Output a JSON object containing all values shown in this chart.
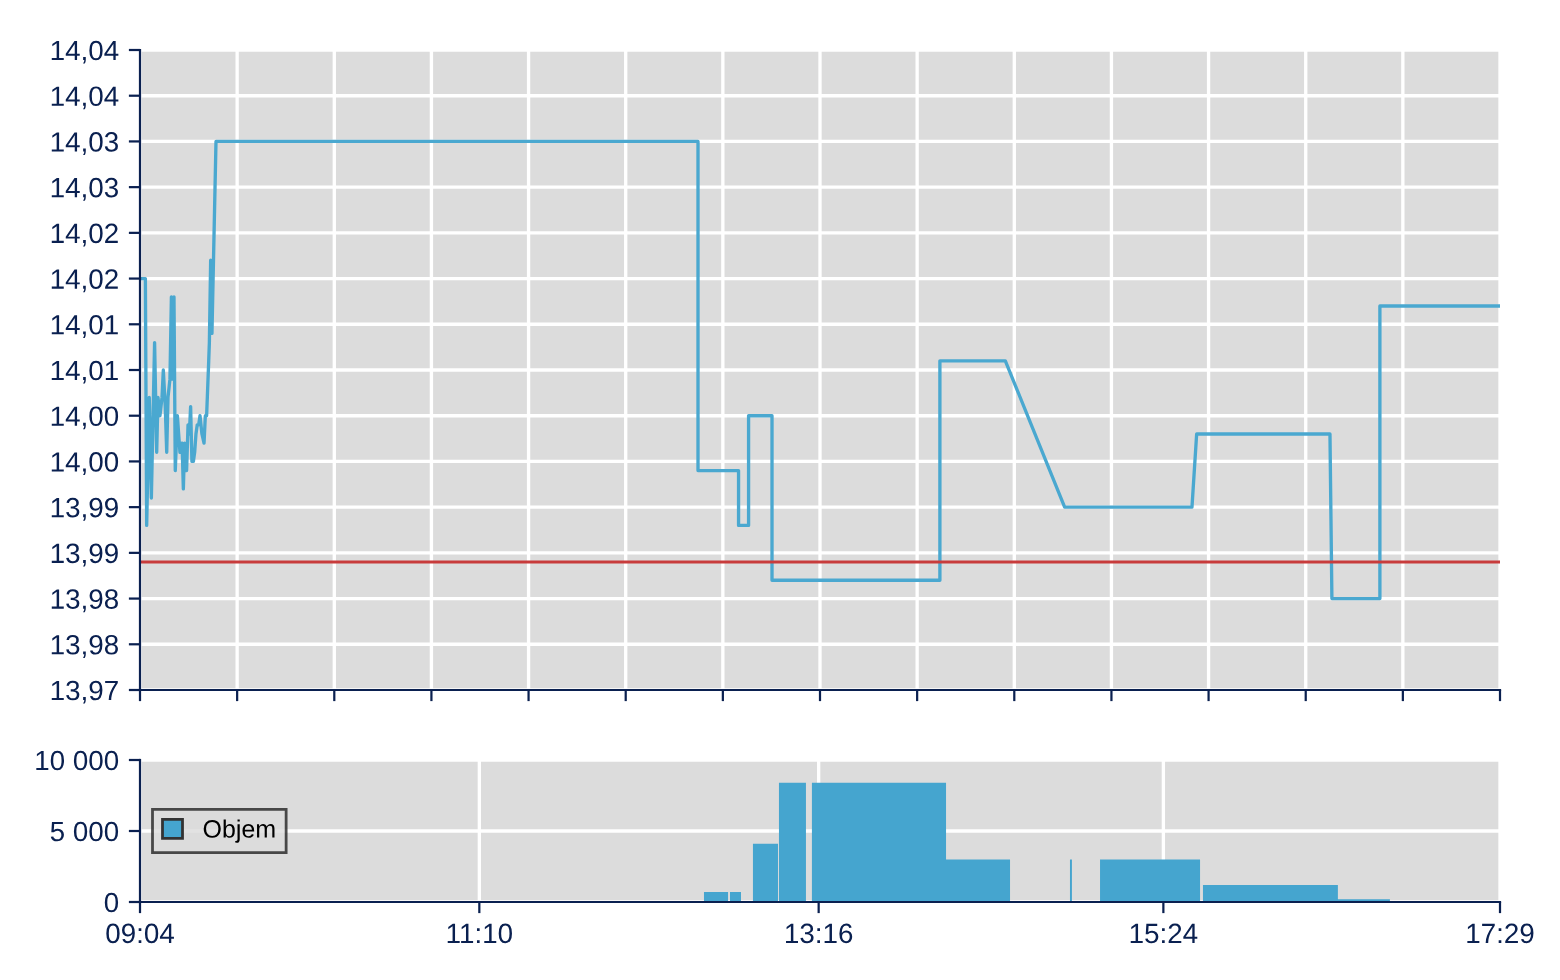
{
  "chart_data": [
    {
      "type": "line",
      "xlim": [
        9.0667,
        17.4833
      ],
      "ylim": [
        13.97,
        14.04
      ],
      "xticks": [
        {
          "value": 9.0667,
          "label": null
        },
        {
          "value": 9.6679,
          "label": null
        },
        {
          "value": 10.2691,
          "label": null
        },
        {
          "value": 10.8702,
          "label": null
        },
        {
          "value": 11.4714,
          "label": null
        },
        {
          "value": 12.0726,
          "label": null
        },
        {
          "value": 12.6738,
          "label": null
        },
        {
          "value": 13.275,
          "label": null
        },
        {
          "value": 13.8762,
          "label": null
        },
        {
          "value": 14.4774,
          "label": null
        },
        {
          "value": 15.0786,
          "label": null
        },
        {
          "value": 15.6798,
          "label": null
        },
        {
          "value": 16.281,
          "label": null
        },
        {
          "value": 16.8821,
          "label": null
        },
        {
          "value": 17.4833,
          "label": null
        }
      ],
      "yticks": [
        {
          "value": 13.97,
          "label": "13,97"
        },
        {
          "value": 13.975,
          "label": "13,98"
        },
        {
          "value": 13.98,
          "label": "13,98"
        },
        {
          "value": 13.985,
          "label": "13,99"
        },
        {
          "value": 13.99,
          "label": "13,99"
        },
        {
          "value": 13.995,
          "label": "14,00"
        },
        {
          "value": 14.0,
          "label": "14,00"
        },
        {
          "value": 14.005,
          "label": "14,01"
        },
        {
          "value": 14.01,
          "label": "14,01"
        },
        {
          "value": 14.015,
          "label": "14,02"
        },
        {
          "value": 14.02,
          "label": "14,02"
        },
        {
          "value": 14.025,
          "label": "14,03"
        },
        {
          "value": 14.03,
          "label": "14,03"
        },
        {
          "value": 14.035,
          "label": "14,04"
        },
        {
          "value": 14.04,
          "label": "14,04"
        }
      ],
      "tick_labels": "y",
      "grid": true,
      "legend": false,
      "marker": "none",
      "line_style": "solid",
      "ref_lines": [
        {
          "axis": "y",
          "value": 13.984,
          "color": "#c83c3c"
        }
      ],
      "series": [
        {
          "color": "#4aa8d0",
          "x": [
            9.079,
            9.1,
            9.108,
            9.124,
            9.137,
            9.157,
            9.17,
            9.178,
            9.19,
            9.203,
            9.211,
            9.223,
            9.232,
            9.24,
            9.252,
            9.261,
            9.269,
            9.277,
            9.285,
            9.298,
            9.306,
            9.314,
            9.327,
            9.335,
            9.343,
            9.355,
            9.364,
            9.372,
            9.38,
            9.388,
            9.397,
            9.405,
            9.413,
            9.421,
            9.43,
            9.438,
            9.45,
            9.463,
            9.471,
            9.479,
            9.492,
            9.496,
            9.504,
            9.512,
            9.537,
            12.52,
            12.52,
            12.759,
            12.771,
            12.771,
            12.833,
            12.833,
            12.978,
            12.978,
            14.017,
            14.017,
            14.422,
            14.789,
            15.577,
            15.606,
            16.431,
            16.443,
            16.74,
            16.74,
            17.483
          ],
          "values": [
            14.015,
            14.015,
            13.988,
            14.002,
            13.991,
            14.008,
            13.996,
            14.002,
            14.0,
            14.002,
            14.005,
            14.001,
            13.996,
            14.002,
            14.004,
            14.013,
            14.004,
            14.013,
            13.994,
            14.0,
            13.998,
            13.996,
            13.997,
            13.992,
            13.997,
            13.994,
            13.999,
            13.998,
            14.001,
            13.995,
            13.995,
            13.996,
            13.998,
            13.999,
            13.999,
            14.0,
            13.998,
            13.997,
            14.0,
            14.0,
            14.006,
            14.008,
            14.017,
            14.009,
            14.03,
            14.03,
            13.994,
            13.994,
            13.994,
            13.988,
            13.988,
            14.0,
            14.0,
            13.982,
            13.982,
            14.006,
            14.006,
            13.99,
            13.99,
            13.998,
            13.998,
            13.98,
            13.98,
            14.012,
            14.012
          ]
        }
      ]
    },
    {
      "type": "area",
      "xlim": [
        9.0667,
        17.4833
      ],
      "ylim": [
        0,
        10000
      ],
      "xticks": [
        {
          "value": 9.0667,
          "label": "09:04"
        },
        {
          "value": 11.1667,
          "label": "11:10"
        },
        {
          "value": 13.2667,
          "label": "13:16"
        },
        {
          "value": 15.4,
          "label": "15:24"
        },
        {
          "value": 17.4833,
          "label": "17:29"
        }
      ],
      "yticks": [
        {
          "value": 0,
          "label": "0"
        },
        {
          "value": 5000,
          "label": "5 000"
        },
        {
          "value": 10000,
          "label": "10 000"
        }
      ],
      "grid": true,
      "legend": "left",
      "series": [
        {
          "name": "Objem",
          "color": "#45a5cf",
          "x": [
            12.557,
            12.557,
            12.706,
            12.706,
            12.718,
            12.718,
            12.786,
            12.786,
            12.86,
            12.86,
            13.015,
            13.015,
            13.021,
            13.021,
            13.188,
            13.188,
            13.225,
            13.225,
            14.055,
            14.055,
            14.451,
            14.451,
            14.822,
            14.822,
            14.834,
            14.834,
            15.008,
            15.008,
            15.627,
            15.627,
            15.645,
            15.645,
            16.48,
            16.48,
            16.802,
            16.802
          ],
          "values": [
            0,
            700,
            700,
            0,
            0,
            700,
            700,
            0,
            0,
            4100,
            4100,
            0,
            0,
            8400,
            8400,
            0,
            0,
            8400,
            8400,
            3000,
            3000,
            0,
            0,
            3000,
            3000,
            0,
            0,
            3000,
            3000,
            0,
            0,
            1200,
            1200,
            200,
            200,
            0
          ]
        }
      ]
    }
  ]
}
